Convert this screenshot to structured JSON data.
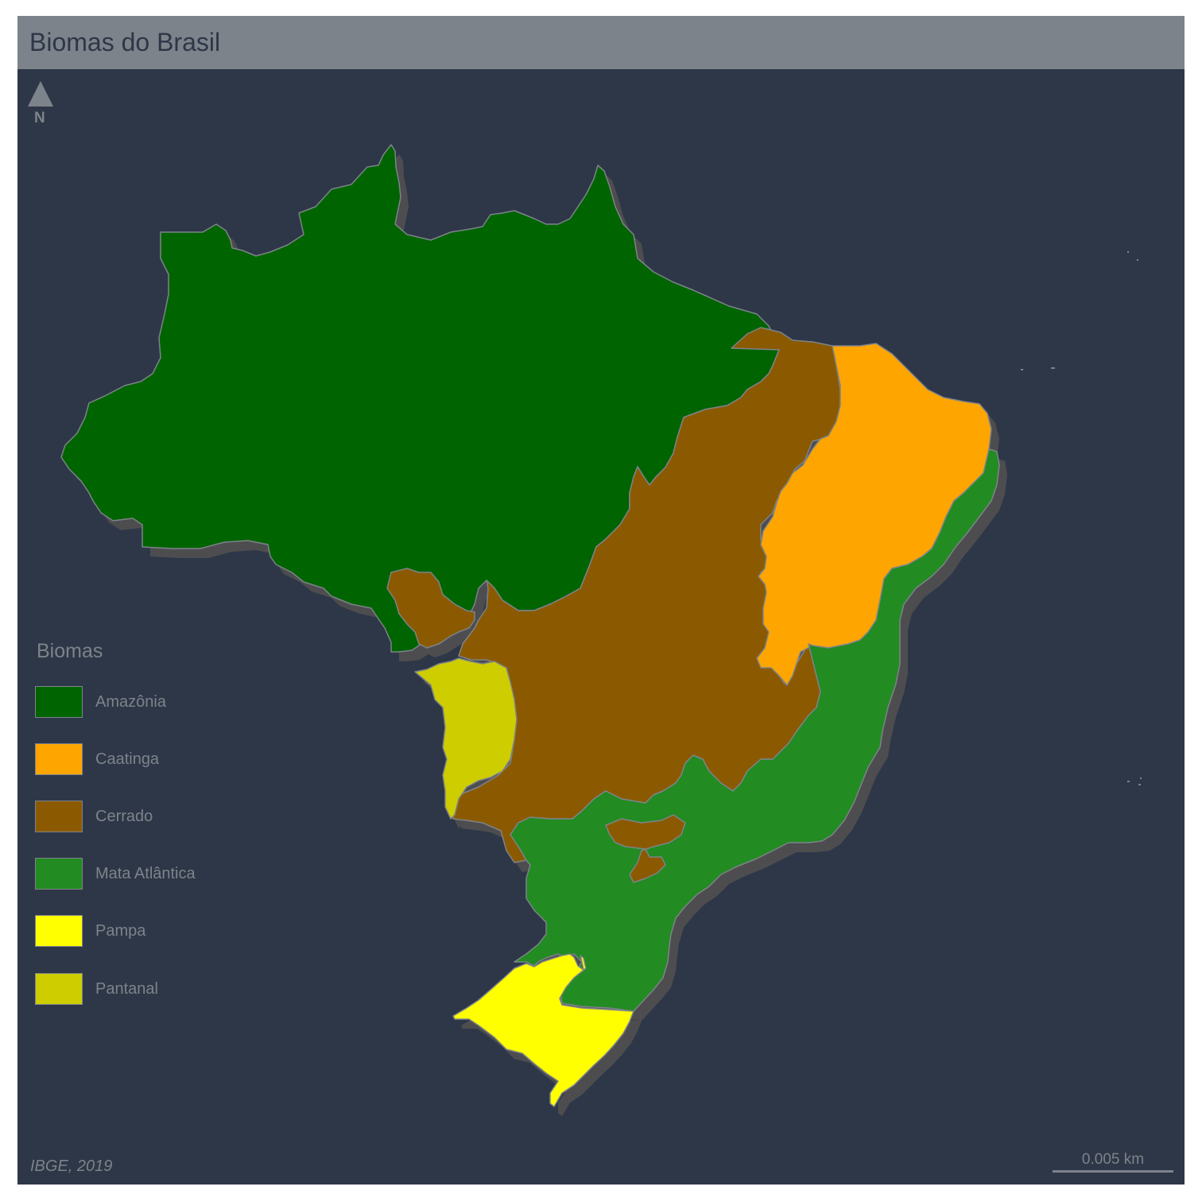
{
  "title": "Biomas do Brasil",
  "north_arrow": {
    "label": "N",
    "icon": "north-arrow-icon"
  },
  "legend": {
    "title": "Biomas",
    "items": [
      {
        "label": "Amazônia",
        "color": "#006400"
      },
      {
        "label": "Caatinga",
        "color": "#ffa500"
      },
      {
        "label": "Cerrado",
        "color": "#8b5a00"
      },
      {
        "label": "Mata Atlântica",
        "color": "#228b22"
      },
      {
        "label": "Pampa",
        "color": "#ffff00"
      },
      {
        "label": "Pantanal",
        "color": "#cdcd00"
      }
    ]
  },
  "source": "IBGE, 2019",
  "scale_bar": {
    "label": "0.005 km"
  },
  "colors": {
    "background": "#2e3748",
    "title_bar": "#7d838a",
    "text": "#7d838a",
    "border": "#7d838a"
  }
}
